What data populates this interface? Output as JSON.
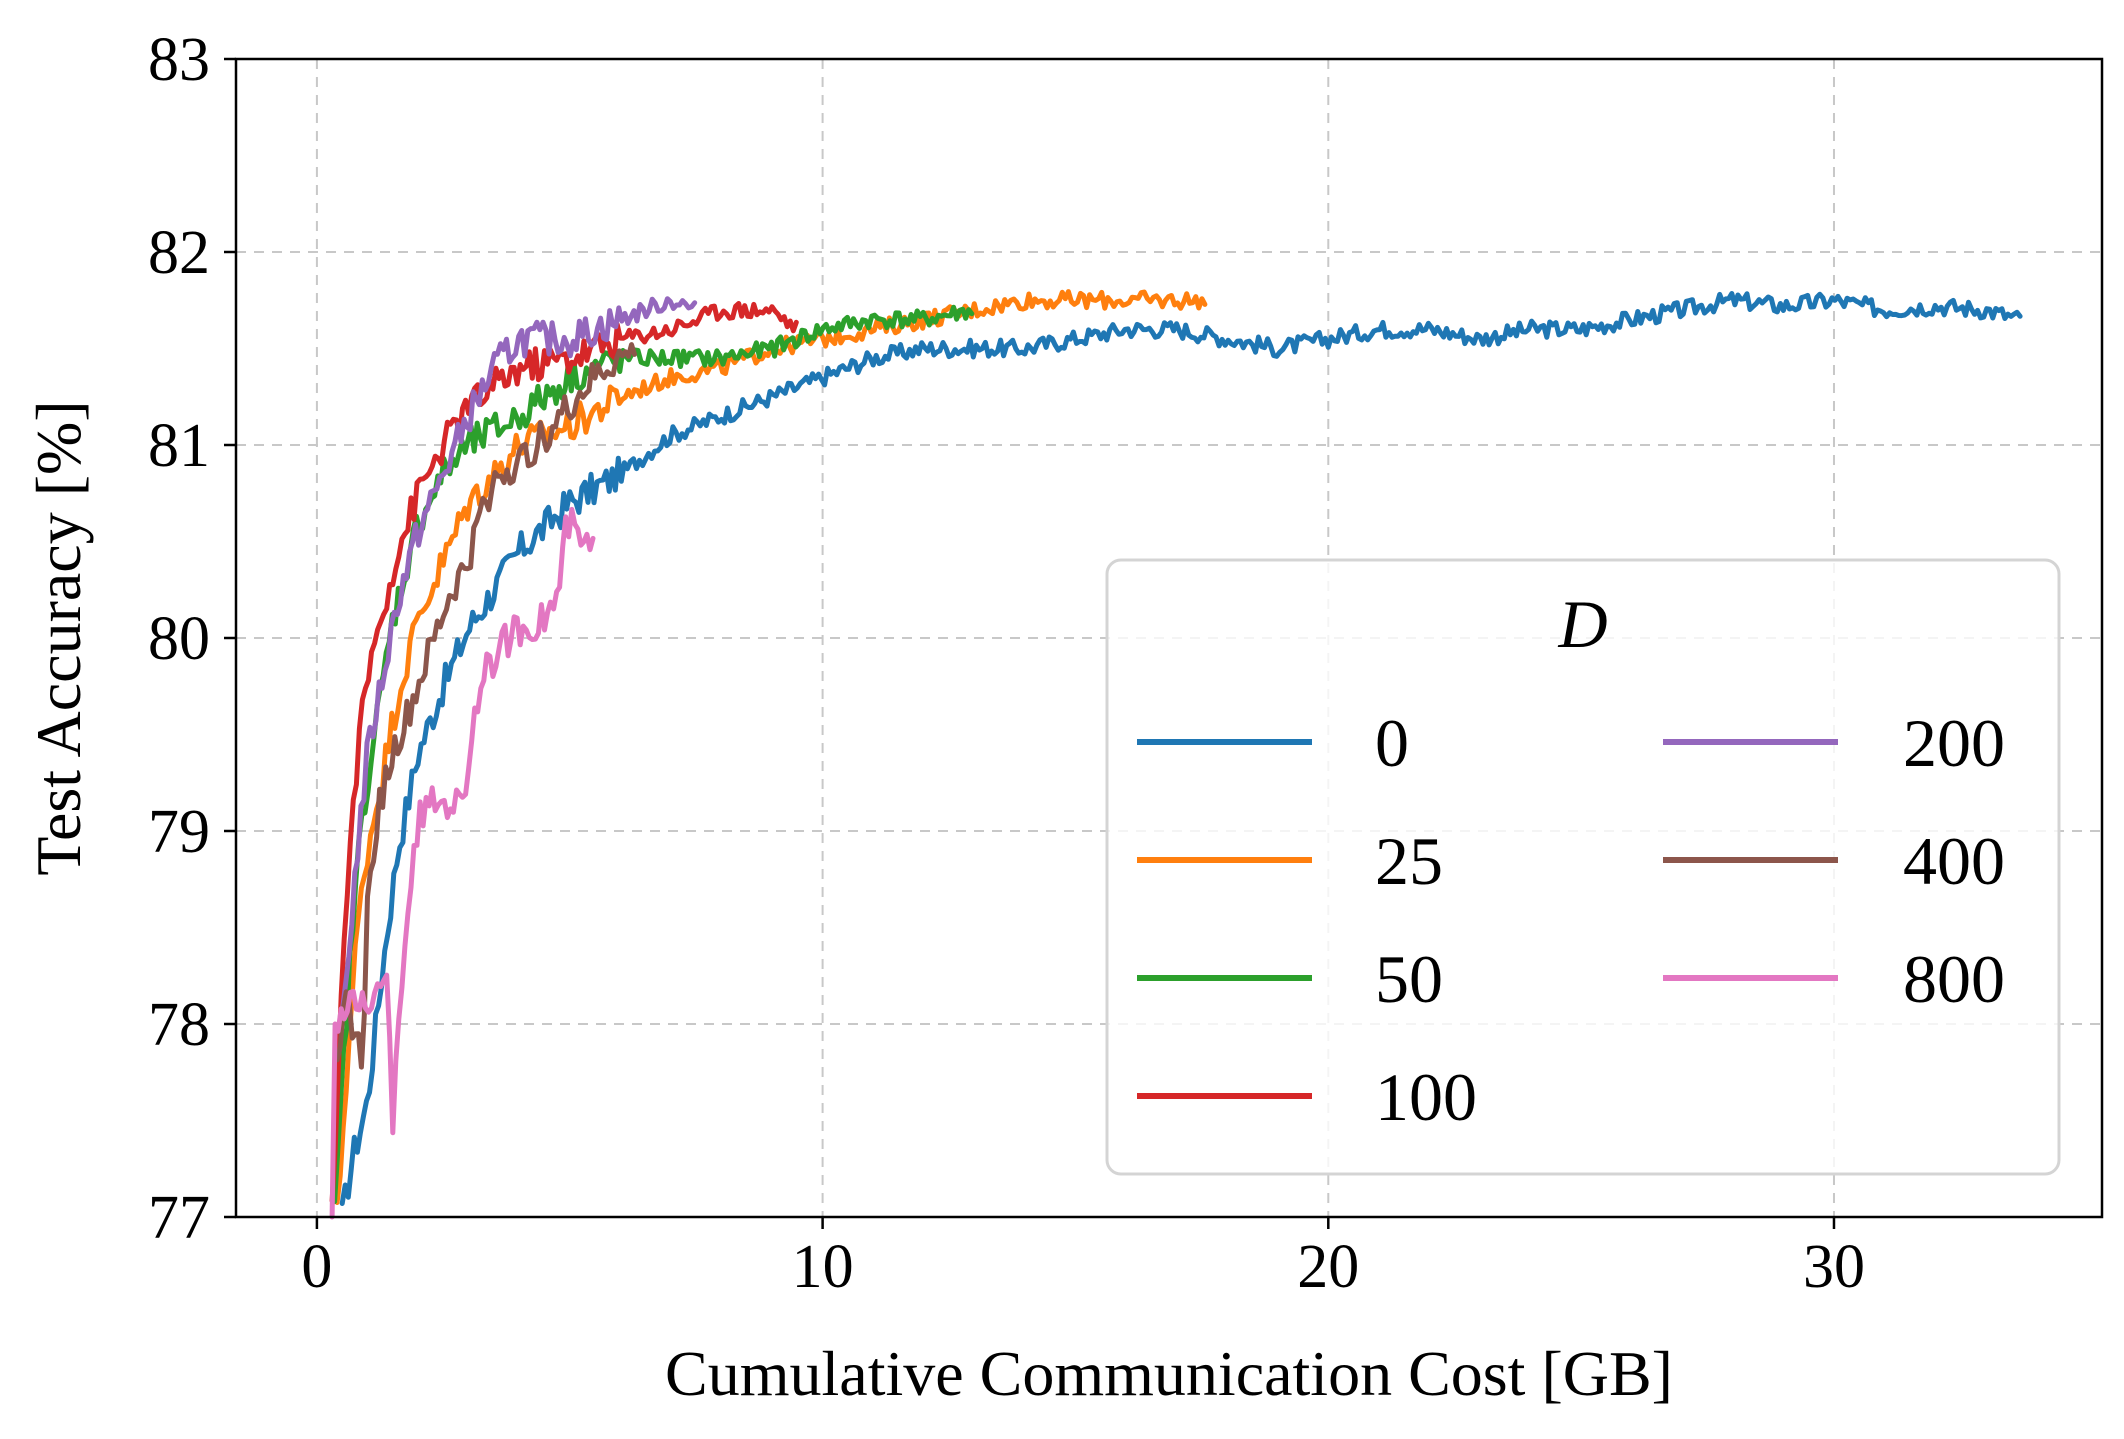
{
  "chart_data": {
    "type": "line",
    "title": "",
    "xlabel": "Cumulative Communication Cost [GB]",
    "ylabel": "Test Accuracy [%]",
    "xlim": [
      -1.6,
      35.3
    ],
    "ylim": [
      77,
      83
    ],
    "xticks": [
      0,
      10,
      20,
      30
    ],
    "yticks": [
      77,
      78,
      79,
      80,
      81,
      82,
      83
    ],
    "grid": true,
    "legend": {
      "title": "D",
      "placement": "lower-right",
      "columns": 2
    },
    "series": [
      {
        "name": "0",
        "color": "#1f77b4",
        "end_x": 33.7,
        "points": [
          [
            0.5,
            77.0
          ],
          [
            0.7,
            77.3
          ],
          [
            1.0,
            77.6
          ],
          [
            1.3,
            78.3
          ],
          [
            1.6,
            78.9
          ],
          [
            2.0,
            79.4
          ],
          [
            2.5,
            79.75
          ],
          [
            3.0,
            80.05
          ],
          [
            3.5,
            80.25
          ],
          [
            4.0,
            80.45
          ],
          [
            5.0,
            80.7
          ],
          [
            6.0,
            80.85
          ],
          [
            7.0,
            81.05
          ],
          [
            8.0,
            81.15
          ],
          [
            9.0,
            81.25
          ],
          [
            10.0,
            81.35
          ],
          [
            11.0,
            81.45
          ],
          [
            12.0,
            81.5
          ],
          [
            13.0,
            81.5
          ],
          [
            14.0,
            81.5
          ],
          [
            15.0,
            81.55
          ],
          [
            16.0,
            81.6
          ],
          [
            17.0,
            81.6
          ],
          [
            18.0,
            81.55
          ],
          [
            19.0,
            81.5
          ],
          [
            20.0,
            81.55
          ],
          [
            21.0,
            81.6
          ],
          [
            22.0,
            81.6
          ],
          [
            23.0,
            81.55
          ],
          [
            24.0,
            81.6
          ],
          [
            25.0,
            81.6
          ],
          [
            26.0,
            81.65
          ],
          [
            27.0,
            81.7
          ],
          [
            28.0,
            81.75
          ],
          [
            29.0,
            81.72
          ],
          [
            30.0,
            81.75
          ],
          [
            31.0,
            81.7
          ],
          [
            32.0,
            81.72
          ],
          [
            33.0,
            81.7
          ],
          [
            33.7,
            81.65
          ]
        ]
      },
      {
        "name": "25",
        "color": "#ff7f0e",
        "end_x": 17.6,
        "points": [
          [
            0.4,
            77.0
          ],
          [
            0.6,
            77.8
          ],
          [
            0.8,
            78.5
          ],
          [
            1.0,
            78.9
          ],
          [
            1.3,
            79.3
          ],
          [
            1.6,
            79.7
          ],
          [
            2.0,
            80.1
          ],
          [
            2.5,
            80.4
          ],
          [
            3.0,
            80.7
          ],
          [
            3.5,
            80.85
          ],
          [
            4.0,
            81.0
          ],
          [
            5.0,
            81.1
          ],
          [
            6.0,
            81.25
          ],
          [
            7.0,
            81.35
          ],
          [
            8.0,
            81.4
          ],
          [
            9.0,
            81.5
          ],
          [
            10.0,
            81.55
          ],
          [
            11.0,
            81.6
          ],
          [
            12.0,
            81.65
          ],
          [
            13.0,
            81.7
          ],
          [
            14.0,
            81.75
          ],
          [
            15.0,
            81.75
          ],
          [
            16.0,
            81.75
          ],
          [
            17.0,
            81.75
          ],
          [
            17.6,
            81.75
          ]
        ]
      },
      {
        "name": "50",
        "color": "#2ca02c",
        "end_x": 13.0,
        "points": [
          [
            0.35,
            77.0
          ],
          [
            0.5,
            77.7
          ],
          [
            0.7,
            78.5
          ],
          [
            0.9,
            79.1
          ],
          [
            1.2,
            79.6
          ],
          [
            1.5,
            80.1
          ],
          [
            2.0,
            80.6
          ],
          [
            2.5,
            80.85
          ],
          [
            3.0,
            81.0
          ],
          [
            4.0,
            81.15
          ],
          [
            5.0,
            81.35
          ],
          [
            6.0,
            81.45
          ],
          [
            7.0,
            81.45
          ],
          [
            8.0,
            81.45
          ],
          [
            9.0,
            81.5
          ],
          [
            10.0,
            81.6
          ],
          [
            11.0,
            81.65
          ],
          [
            12.0,
            81.65
          ],
          [
            13.0,
            81.7
          ]
        ]
      },
      {
        "name": "100",
        "color": "#d62728",
        "end_x": 9.5,
        "points": [
          [
            0.3,
            77.0
          ],
          [
            0.45,
            78.0
          ],
          [
            0.6,
            78.7
          ],
          [
            0.8,
            79.4
          ],
          [
            1.0,
            79.8
          ],
          [
            1.3,
            80.15
          ],
          [
            1.6,
            80.45
          ],
          [
            2.0,
            80.75
          ],
          [
            2.5,
            81.0
          ],
          [
            3.0,
            81.2
          ],
          [
            3.5,
            81.3
          ],
          [
            4.0,
            81.4
          ],
          [
            5.0,
            81.45
          ],
          [
            6.0,
            81.55
          ],
          [
            7.0,
            81.6
          ],
          [
            8.0,
            81.7
          ],
          [
            9.0,
            81.7
          ],
          [
            9.5,
            81.6
          ]
        ]
      },
      {
        "name": "200",
        "color": "#9467bd",
        "end_x": 7.5,
        "points": [
          [
            0.45,
            77.9
          ],
          [
            0.6,
            78.3
          ],
          [
            0.8,
            78.9
          ],
          [
            1.0,
            79.4
          ],
          [
            1.3,
            79.8
          ],
          [
            1.6,
            80.2
          ],
          [
            2.0,
            80.55
          ],
          [
            2.5,
            80.85
          ],
          [
            3.0,
            81.15
          ],
          [
            3.5,
            81.4
          ],
          [
            4.0,
            81.55
          ],
          [
            5.0,
            81.55
          ],
          [
            6.0,
            81.65
          ],
          [
            7.0,
            81.75
          ],
          [
            7.5,
            81.7
          ]
        ]
      },
      {
        "name": "400",
        "color": "#8c564b",
        "end_x": 6.3,
        "points": [
          [
            0.4,
            77.9
          ],
          [
            0.6,
            78.1
          ],
          [
            0.9,
            77.8
          ],
          [
            1.0,
            78.6
          ],
          [
            1.2,
            79.1
          ],
          [
            1.5,
            79.4
          ],
          [
            1.8,
            79.6
          ],
          [
            2.2,
            79.9
          ],
          [
            2.6,
            80.2
          ],
          [
            3.0,
            80.4
          ],
          [
            3.3,
            80.7
          ],
          [
            3.6,
            80.85
          ],
          [
            4.0,
            80.9
          ],
          [
            4.5,
            81.05
          ],
          [
            5.0,
            81.2
          ],
          [
            5.5,
            81.35
          ],
          [
            6.0,
            81.45
          ],
          [
            6.3,
            81.5
          ]
        ]
      },
      {
        "name": "800",
        "color": "#e377c2",
        "end_x": 5.5,
        "points": [
          [
            0.3,
            77.0
          ],
          [
            0.35,
            78.0
          ],
          [
            0.5,
            78.05
          ],
          [
            0.8,
            78.1
          ],
          [
            1.2,
            78.15
          ],
          [
            1.4,
            78.2
          ],
          [
            1.5,
            77.5
          ],
          [
            1.6,
            78.0
          ],
          [
            1.8,
            78.6
          ],
          [
            2.0,
            79.05
          ],
          [
            2.3,
            79.15
          ],
          [
            2.6,
            79.15
          ],
          [
            2.9,
            79.15
          ],
          [
            3.1,
            79.6
          ],
          [
            3.3,
            79.8
          ],
          [
            3.6,
            79.95
          ],
          [
            4.0,
            80.05
          ],
          [
            4.5,
            80.1
          ],
          [
            4.8,
            80.25
          ],
          [
            4.9,
            80.55
          ],
          [
            5.0,
            80.6
          ],
          [
            5.2,
            80.5
          ],
          [
            5.5,
            80.45
          ]
        ]
      }
    ]
  }
}
